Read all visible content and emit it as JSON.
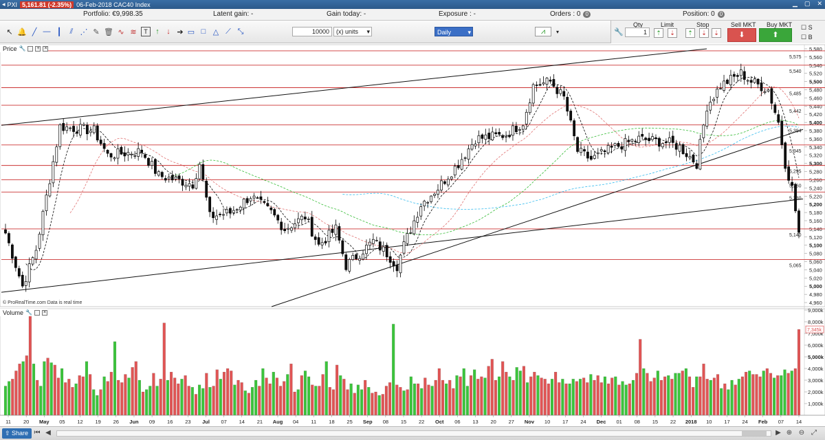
{
  "window": {
    "instrument_code": "PXI",
    "price_badge": "5,161.81 (-2.35%)",
    "title": "06-Feb-2018 CAC40 Index"
  },
  "account": {
    "portfolio": "Portfolio: €9,998.35",
    "latent_gain": "Latent gain: -",
    "gain_today": "Gain today: -",
    "exposure": "Exposure : -",
    "orders_label": "Orders : 0",
    "orders_count": "0",
    "position_label": "Position: 0",
    "position_count": "0"
  },
  "toolbar": {
    "quantity_value": "10000",
    "units_value": "(x) units",
    "timeframe": "Daily",
    "qty_label": "Qty",
    "qty_value": "1",
    "limit_label": "Limit",
    "stop_label": "Stop",
    "sell_label": "Sell MKT",
    "buy_label": "Buy MKT",
    "s_label": "S",
    "b_label": "B"
  },
  "panels": {
    "price_label": "Price",
    "volume_label": "Volume",
    "copyright": "© ProRealTime.com  Data is real time"
  },
  "colors": {
    "up": "#3cc43c",
    "down": "#e05555",
    "hline": "#cc3333",
    "ma_short": "#000000",
    "ma_medium": "#e07070",
    "ma_long": "#33bb33",
    "ma_xlong": "#33bbee"
  },
  "bottom": {
    "share_label": "Share"
  },
  "chart_data": {
    "type": "candlestick",
    "price_axis": {
      "ticks": [
        "5,580",
        "5,560",
        "5,540",
        "5,520",
        "5,500",
        "5,480",
        "5,460",
        "5,440",
        "5,420",
        "5,400",
        "5,380",
        "5,360",
        "5,340",
        "5,320",
        "5,300",
        "5,280",
        "5,260",
        "5,240",
        "5,220",
        "5,200",
        "5,180",
        "5,160",
        "5,140",
        "5,120",
        "5,100",
        "5,080",
        "5,060",
        "5,040",
        "5,020",
        "5,000",
        "4,980",
        "4,960"
      ],
      "ylim": [
        4950,
        5590
      ]
    },
    "level_labels": [
      {
        "label": "5,575",
        "value": 5575
      },
      {
        "label": "5,540",
        "value": 5540
      },
      {
        "label": "5,485",
        "value": 5485
      },
      {
        "label": "5,442",
        "value": 5442
      },
      {
        "label": "5,394",
        "value": 5394
      },
      {
        "label": "5,345",
        "value": 5345
      },
      {
        "label": "5,295",
        "value": 5295
      },
      {
        "label": "5,260",
        "value": 5260
      },
      {
        "label": "5,230",
        "value": 5230
      },
      {
        "label": "5,140",
        "value": 5140
      },
      {
        "label": "5,065",
        "value": 5065
      }
    ],
    "volume_axis": {
      "ticks": [
        "9,000k",
        "8,000k",
        "7,000k",
        "6,000k",
        "5,000k",
        "4,000k",
        "3,000k",
        "2,000k",
        "1,000k"
      ],
      "ylim": [
        0,
        9000
      ],
      "last_label": "7,345k"
    },
    "x_labels": [
      "11",
      "20",
      "May",
      "05",
      "12",
      "19",
      "26",
      "Jun",
      "09",
      "16",
      "23",
      "Jul",
      "07",
      "14",
      "21",
      "Aug",
      "04",
      "11",
      "18",
      "25",
      "Sep",
      "08",
      "15",
      "22",
      "Oct",
      "06",
      "13",
      "20",
      "27",
      "Nov",
      "10",
      "17",
      "24",
      "Dec",
      "01",
      "08",
      "15",
      "22",
      "2018",
      "10",
      "17",
      "24",
      "Feb",
      "07",
      "14"
    ],
    "waypoints": [
      [
        0,
        5130
      ],
      [
        5,
        5000
      ],
      [
        9,
        5090
      ],
      [
        16,
        5390
      ],
      [
        26,
        5380
      ],
      [
        30,
        5320
      ],
      [
        40,
        5330
      ],
      [
        45,
        5270
      ],
      [
        55,
        5250
      ],
      [
        57,
        5300
      ],
      [
        60,
        5170
      ],
      [
        66,
        5180
      ],
      [
        72,
        5220
      ],
      [
        78,
        5180
      ],
      [
        82,
        5140
      ],
      [
        88,
        5170
      ],
      [
        92,
        5100
      ],
      [
        97,
        5140
      ],
      [
        100,
        5050
      ],
      [
        108,
        5110
      ],
      [
        112,
        5080
      ],
      [
        115,
        5050
      ],
      [
        117,
        5100
      ],
      [
        122,
        5200
      ],
      [
        127,
        5240
      ],
      [
        130,
        5270
      ],
      [
        133,
        5300
      ],
      [
        138,
        5360
      ],
      [
        147,
        5370
      ],
      [
        152,
        5400
      ],
      [
        155,
        5490
      ],
      [
        160,
        5500
      ],
      [
        164,
        5460
      ],
      [
        168,
        5330
      ],
      [
        172,
        5310
      ],
      [
        179,
        5340
      ],
      [
        186,
        5360
      ],
      [
        195,
        5350
      ],
      [
        198,
        5340
      ],
      [
        203,
        5300
      ],
      [
        206,
        5440
      ],
      [
        210,
        5490
      ],
      [
        216,
        5520
      ],
      [
        219,
        5500
      ],
      [
        224,
        5480
      ],
      [
        227,
        5400
      ],
      [
        229,
        5300
      ],
      [
        231,
        5240
      ],
      [
        233,
        5130
      ]
    ],
    "volume": {
      "values": [
        2500,
        2900,
        3100,
        3800,
        4400,
        4600,
        5100,
        8600,
        4400,
        3000,
        2500,
        4600,
        4900,
        4500,
        4300,
        3200,
        4000,
        2800,
        3100,
        2400,
        2700,
        3400,
        3300,
        4600,
        3500,
        2200,
        1700,
        2200,
        3300,
        2900,
        3700,
        6300,
        3000,
        2800,
        3500,
        3200,
        4100,
        4600,
        3000,
        2000,
        2200,
        2500,
        3600,
        2500,
        3100,
        7900,
        3000,
        3700,
        3200,
        2700,
        3100,
        3400,
        2500,
        2400,
        1800,
        2600,
        2300,
        3600,
        2400,
        2500,
        3900,
        3100,
        3700,
        4000,
        3800,
        2600,
        3000,
        2800,
        2100,
        1900,
        2400,
        3000,
        2500,
        4000,
        3200,
        2700,
        3700,
        3200,
        2500,
        2900,
        3500,
        4400,
        2000,
        2200,
        3400,
        3800,
        3300,
        2600,
        2500,
        2500,
        3500,
        4600,
        2400,
        2200,
        4300,
        3400,
        3100,
        2200,
        2700,
        1900,
        2600,
        2200,
        3000,
        2400,
        1900,
        2000,
        1700,
        1800,
        2500,
        2800,
        7800,
        2600,
        2400,
        2100,
        2200,
        3300,
        2700,
        2700,
        2300,
        3200,
        2600,
        2500,
        3000,
        4000,
        3000,
        2700,
        3000,
        2300,
        3400,
        3300,
        4000,
        2500,
        3400,
        3900,
        3100,
        3300,
        3200,
        4200,
        4800,
        3000,
        3300,
        4600,
        3700,
        3300,
        3000,
        4100,
        3800,
        4200,
        2800,
        3300,
        3700,
        3400,
        3200,
        3100,
        2700,
        3100,
        3700,
        2800,
        3100,
        2700,
        2700,
        3100,
        2900,
        3100,
        3200,
        2800,
        3500,
        3000,
        3400,
        2800,
        3300,
        2700,
        3200,
        3300,
        2600,
        2900,
        2600,
        2700,
        3000,
        3600,
        6500,
        4000,
        3600,
        2900,
        3200,
        3800,
        3000,
        3300,
        3400,
        3100,
        3600,
        3600,
        3800,
        4000,
        3300,
        2400,
        3300,
        3300,
        4400,
        3100,
        3000,
        3200,
        3500,
        2300,
        2700,
        2200,
        3000,
        2600,
        3100,
        3300,
        3700,
        3800,
        3500,
        3500,
        3300,
        3800,
        4000,
        3600,
        3200,
        3400,
        3400,
        3900,
        3600,
        3800,
        4000,
        7345
      ],
      "last_value": 7345
    },
    "trendlines_note": "three black trendlines"
  }
}
